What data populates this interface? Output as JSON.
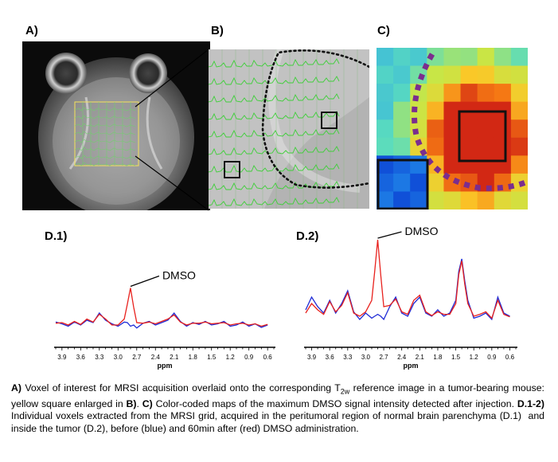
{
  "panels": {
    "a": "A)",
    "b": "B)",
    "c": "C)",
    "d1": "D.1)",
    "d2": "D.2)"
  },
  "annotations": {
    "dmso_d1": "DMSO",
    "dmso_d2": "DMSO"
  },
  "chart_data": [
    {
      "type": "line",
      "panel": "D.1)",
      "xlabel": "ppm",
      "x_ticks": [
        "3.9",
        "3.6",
        "3.3",
        "3.0",
        "2.7",
        "2.4",
        "2.1",
        "1.8",
        "1.5",
        "1.2",
        "0.9",
        "0.6"
      ],
      "xlim": [
        4.0,
        0.5
      ],
      "x_reversed": true,
      "series": [
        {
          "color": "#1f2bd6",
          "x": [
            4.0,
            3.9,
            3.8,
            3.7,
            3.6,
            3.5,
            3.4,
            3.3,
            3.2,
            3.1,
            3.0,
            2.9,
            2.85,
            2.8,
            2.75,
            2.7,
            2.6,
            2.5,
            2.4,
            2.3,
            2.2,
            2.1,
            2.0,
            1.9,
            1.8,
            1.7,
            1.6,
            1.5,
            1.4,
            1.3,
            1.2,
            1.1,
            1.0,
            0.9,
            0.8,
            0.7,
            0.6
          ],
          "y": [
            0.05,
            0.02,
            -0.02,
            0.05,
            0.0,
            0.08,
            0.04,
            0.2,
            0.08,
            0.02,
            -0.02,
            0.05,
            0.04,
            -0.02,
            0.0,
            -0.05,
            0.03,
            0.06,
            0.0,
            0.04,
            0.08,
            0.2,
            0.06,
            -0.02,
            0.04,
            0.01,
            0.06,
            0.0,
            0.02,
            0.06,
            -0.02,
            0.0,
            0.05,
            -0.02,
            0.02,
            -0.04,
            0.0
          ]
        },
        {
          "color": "#e8211d",
          "x": [
            4.0,
            3.9,
            3.8,
            3.7,
            3.6,
            3.5,
            3.4,
            3.3,
            3.2,
            3.1,
            3.0,
            2.9,
            2.85,
            2.8,
            2.75,
            2.7,
            2.6,
            2.5,
            2.4,
            2.3,
            2.2,
            2.1,
            2.0,
            1.9,
            1.8,
            1.7,
            1.6,
            1.5,
            1.4,
            1.3,
            1.2,
            1.1,
            1.0,
            0.9,
            0.8,
            0.7,
            0.6
          ],
          "y": [
            0.03,
            0.04,
            0.0,
            0.06,
            0.01,
            0.1,
            0.05,
            0.18,
            0.1,
            0.0,
            0.0,
            0.1,
            0.35,
            0.62,
            0.3,
            0.04,
            0.03,
            0.05,
            0.02,
            0.06,
            0.1,
            0.17,
            0.05,
            0.0,
            0.03,
            0.03,
            0.05,
            0.02,
            0.03,
            0.04,
            0.0,
            0.02,
            0.03,
            0.0,
            0.02,
            -0.02,
            0.01
          ]
        }
      ]
    },
    {
      "type": "line",
      "panel": "D.2)",
      "xlabel": "ppm",
      "x_ticks": [
        "3.9",
        "3.6",
        "3.3",
        "3.0",
        "2.7",
        "2.4",
        "2.1",
        "1.8",
        "1.5",
        "1.2",
        "0.9",
        "0.6"
      ],
      "xlim": [
        4.0,
        0.5
      ],
      "x_reversed": true,
      "series": [
        {
          "color": "#1f2bd6",
          "x": [
            4.0,
            3.9,
            3.8,
            3.7,
            3.6,
            3.5,
            3.4,
            3.3,
            3.2,
            3.1,
            3.0,
            2.9,
            2.85,
            2.8,
            2.75,
            2.7,
            2.6,
            2.5,
            2.4,
            2.3,
            2.2,
            2.1,
            2.0,
            1.9,
            1.8,
            1.7,
            1.6,
            1.5,
            1.45,
            1.4,
            1.35,
            1.3,
            1.2,
            1.1,
            1.0,
            0.9,
            0.8,
            0.7,
            0.6
          ],
          "y": [
            0.15,
            0.35,
            0.2,
            0.1,
            0.3,
            0.1,
            0.25,
            0.45,
            0.12,
            0.0,
            0.1,
            0.02,
            0.05,
            0.08,
            0.05,
            0.0,
            0.2,
            0.35,
            0.1,
            0.05,
            0.25,
            0.35,
            0.1,
            0.05,
            0.15,
            0.05,
            0.1,
            0.3,
            0.75,
            0.95,
            0.6,
            0.3,
            0.02,
            0.05,
            0.1,
            0.0,
            0.35,
            0.1,
            0.05
          ]
        },
        {
          "color": "#e8211d",
          "x": [
            4.0,
            3.9,
            3.8,
            3.7,
            3.6,
            3.5,
            3.4,
            3.3,
            3.2,
            3.1,
            3.0,
            2.9,
            2.85,
            2.8,
            2.75,
            2.7,
            2.6,
            2.5,
            2.4,
            2.3,
            2.2,
            2.1,
            2.0,
            1.9,
            1.8,
            1.7,
            1.6,
            1.5,
            1.45,
            1.4,
            1.35,
            1.3,
            1.2,
            1.1,
            1.0,
            0.9,
            0.8,
            0.7,
            0.6
          ],
          "y": [
            0.1,
            0.25,
            0.15,
            0.08,
            0.28,
            0.12,
            0.22,
            0.42,
            0.1,
            0.05,
            0.12,
            0.3,
            0.75,
            1.25,
            0.7,
            0.2,
            0.22,
            0.32,
            0.12,
            0.08,
            0.3,
            0.38,
            0.12,
            0.06,
            0.12,
            0.08,
            0.08,
            0.25,
            0.7,
            0.92,
            0.55,
            0.25,
            0.05,
            0.08,
            0.12,
            0.02,
            0.3,
            0.08,
            0.04
          ]
        }
      ]
    }
  ]
}
